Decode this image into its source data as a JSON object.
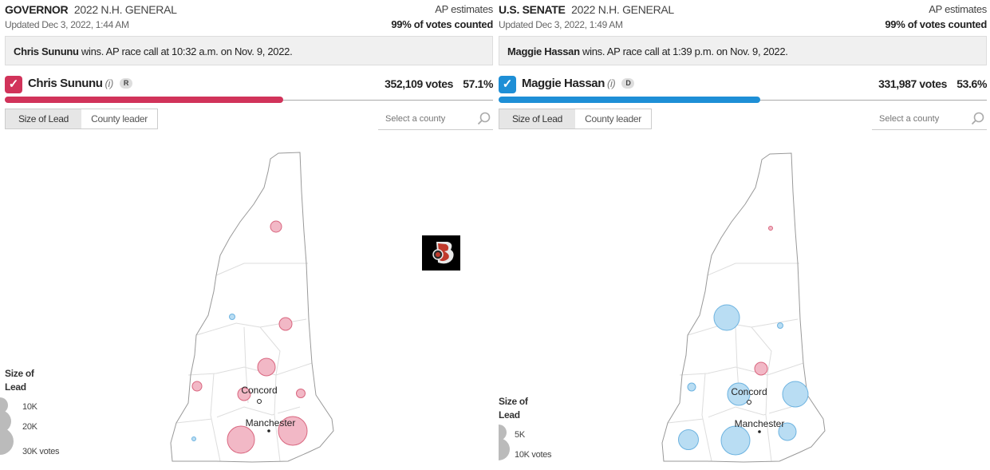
{
  "governor": {
    "race": "GOVERNOR",
    "election": "2022 N.H. GENERAL",
    "updated": "Updated Dec 3, 2022, 1:44 AM",
    "estimates_label": "AP estimates",
    "counted": "99% of votes counted",
    "call_name": "Chris Sununu",
    "call_text": " wins. AP race call at 10:32 a.m. on Nov. 9, 2022.",
    "candidate": "Chris Sununu",
    "incumbent_mark": "(i)",
    "party": "R",
    "votes": "352,109 votes",
    "share": "57.1%",
    "share_value": 57.1,
    "party_color": "#d1335a",
    "toggle": [
      "Size of Lead",
      "County leader"
    ],
    "search_placeholder": "Select a county",
    "legend": {
      "title_1": "Size of",
      "title_2": "Lead",
      "items": [
        "10K",
        "20K",
        "30K votes"
      ]
    },
    "cities": [
      "Concord",
      "Manchester"
    ]
  },
  "senate": {
    "race": "U.S. SENATE",
    "election": "2022 N.H. GENERAL",
    "updated": "Updated Dec 3, 2022, 1:49 AM",
    "estimates_label": "AP estimates",
    "counted": "99% of votes counted",
    "call_name": "Maggie Hassan",
    "call_text": " wins. AP race call at 1:39 p.m. on Nov. 9, 2022.",
    "candidate": "Maggie Hassan",
    "incumbent_mark": "(i)",
    "party": "D",
    "votes": "331,987 votes",
    "share": "53.6%",
    "share_value": 53.6,
    "party_color": "#1e8fd6",
    "toggle": [
      "Size of Lead",
      "County leader"
    ],
    "search_placeholder": "Select a county",
    "legend": {
      "title_1": "Size of",
      "title_2": "Lead",
      "items": [
        "5K",
        "10K votes"
      ]
    },
    "cities": [
      "Concord",
      "Manchester"
    ]
  },
  "colors": {
    "rep_bubble": "#f2b8c6",
    "rep_bubble_stroke": "#d9667f",
    "dem_bubble": "#b9ddf3",
    "dem_bubble_stroke": "#6db3e0",
    "county_line": "#dddddd",
    "state_outline": "#999999"
  }
}
